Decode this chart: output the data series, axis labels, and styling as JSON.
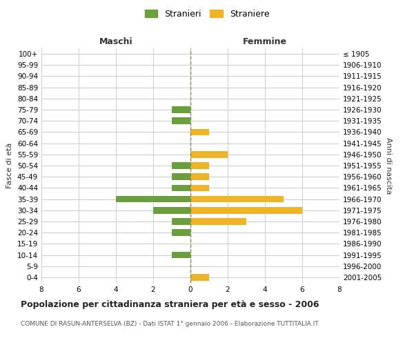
{
  "age_groups": [
    "100+",
    "95-99",
    "90-94",
    "85-89",
    "80-84",
    "75-79",
    "70-74",
    "65-69",
    "60-64",
    "55-59",
    "50-54",
    "45-49",
    "40-44",
    "35-39",
    "30-34",
    "25-29",
    "20-24",
    "15-19",
    "10-14",
    "5-9",
    "0-4"
  ],
  "birth_years": [
    "≤ 1905",
    "1906-1910",
    "1911-1915",
    "1916-1920",
    "1921-1925",
    "1926-1930",
    "1931-1935",
    "1936-1940",
    "1941-1945",
    "1946-1950",
    "1951-1955",
    "1956-1960",
    "1961-1965",
    "1966-1970",
    "1971-1975",
    "1976-1980",
    "1981-1985",
    "1986-1990",
    "1991-1995",
    "1996-2000",
    "2001-2005"
  ],
  "maschi_stranieri": [
    0,
    0,
    0,
    0,
    0,
    1,
    1,
    0,
    0,
    0,
    1,
    1,
    1,
    4,
    2,
    1,
    1,
    0,
    1,
    0,
    0
  ],
  "femmine_straniere": [
    0,
    0,
    0,
    0,
    0,
    0,
    0,
    1,
    0,
    2,
    1,
    1,
    1,
    5,
    6,
    3,
    0,
    0,
    0,
    0,
    1
  ],
  "color_stranieri": "#6a9e3f",
  "color_straniere": "#f0b429",
  "title": "Popolazione per cittadinanza straniera per età e sesso - 2006",
  "subtitle": "COMUNE DI RASUN-ANTERSELVA (BZ) - Dati ISTAT 1° gennaio 2006 - Elaborazione TUTTITALIA.IT",
  "xlabel_left": "Maschi",
  "xlabel_right": "Femmine",
  "ylabel_left": "Fasce di età",
  "ylabel_right": "Anni di nascita",
  "legend_stranieri": "Stranieri",
  "legend_straniere": "Straniere",
  "xlim": 8,
  "xticks": [
    -8,
    -6,
    -4,
    -2,
    0,
    2,
    4,
    6,
    8
  ],
  "xtick_labels": [
    "8",
    "6",
    "4",
    "2",
    "0",
    "2",
    "4",
    "6",
    "8"
  ],
  "background_color": "#ffffff",
  "grid_color": "#cccccc",
  "dashed_color": "#888855",
  "title_fontsize": 9,
  "subtitle_fontsize": 6.5,
  "tick_fontsize": 7.5,
  "label_fontsize": 8,
  "legend_fontsize": 9,
  "header_fontsize": 9
}
